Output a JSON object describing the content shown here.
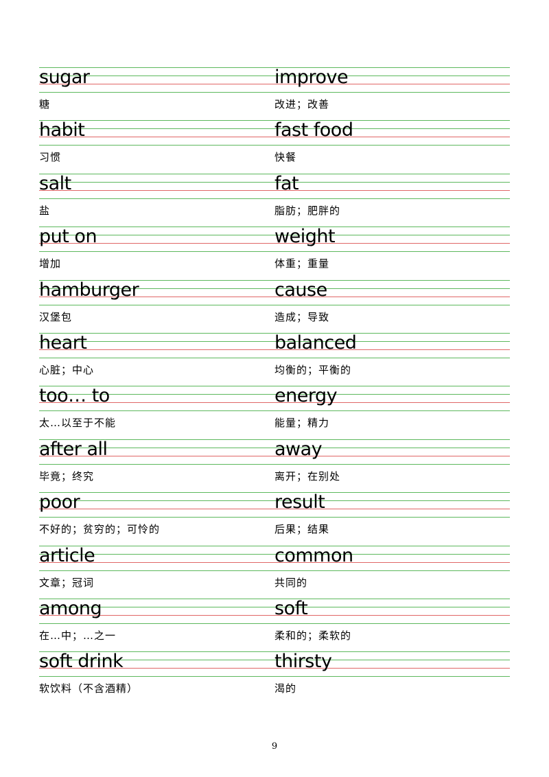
{
  "colors": {
    "guide_line": "#5cb85c",
    "baseline": "#e06666"
  },
  "entries": [
    {
      "left": {
        "word": "sugar",
        "meaning": "糖"
      },
      "right": {
        "word": "improve",
        "meaning": "改进；改善"
      }
    },
    {
      "left": {
        "word": "habit",
        "meaning": "习惯"
      },
      "right": {
        "word": "fast food",
        "meaning": "快餐"
      }
    },
    {
      "left": {
        "word": "salt",
        "meaning": "盐"
      },
      "right": {
        "word": "fat",
        "meaning": "脂肪；肥胖的"
      }
    },
    {
      "left": {
        "word": "put on",
        "meaning": "增加"
      },
      "right": {
        "word": "weight",
        "meaning": "体重；重量"
      }
    },
    {
      "left": {
        "word": "hamburger",
        "meaning": "汉堡包"
      },
      "right": {
        "word": "cause",
        "meaning": "造成；导致"
      }
    },
    {
      "left": {
        "word": "heart",
        "meaning": "心脏；中心"
      },
      "right": {
        "word": "balanced",
        "meaning": "均衡的；平衡的"
      }
    },
    {
      "left": {
        "word": "too… to",
        "meaning": "太…以至于不能"
      },
      "right": {
        "word": "energy",
        "meaning": "能量；精力"
      }
    },
    {
      "left": {
        "word": "after all",
        "meaning": "毕竟；终究"
      },
      "right": {
        "word": "away",
        "meaning": "离开；在别处"
      }
    },
    {
      "left": {
        "word": "poor",
        "meaning": "不好的；贫穷的；可怜的"
      },
      "right": {
        "word": "result",
        "meaning": "后果；结果"
      }
    },
    {
      "left": {
        "word": "article",
        "meaning": "文章；冠词"
      },
      "right": {
        "word": "common",
        "meaning": "共同的"
      }
    },
    {
      "left": {
        "word": "among",
        "meaning": "在…中；…之一"
      },
      "right": {
        "word": "soft",
        "meaning": "柔和的；柔软的"
      }
    },
    {
      "left": {
        "word": "soft drink",
        "meaning": "软饮料（不含酒精）"
      },
      "right": {
        "word": "thirsty",
        "meaning": "渴的"
      }
    }
  ],
  "page_number": "9"
}
